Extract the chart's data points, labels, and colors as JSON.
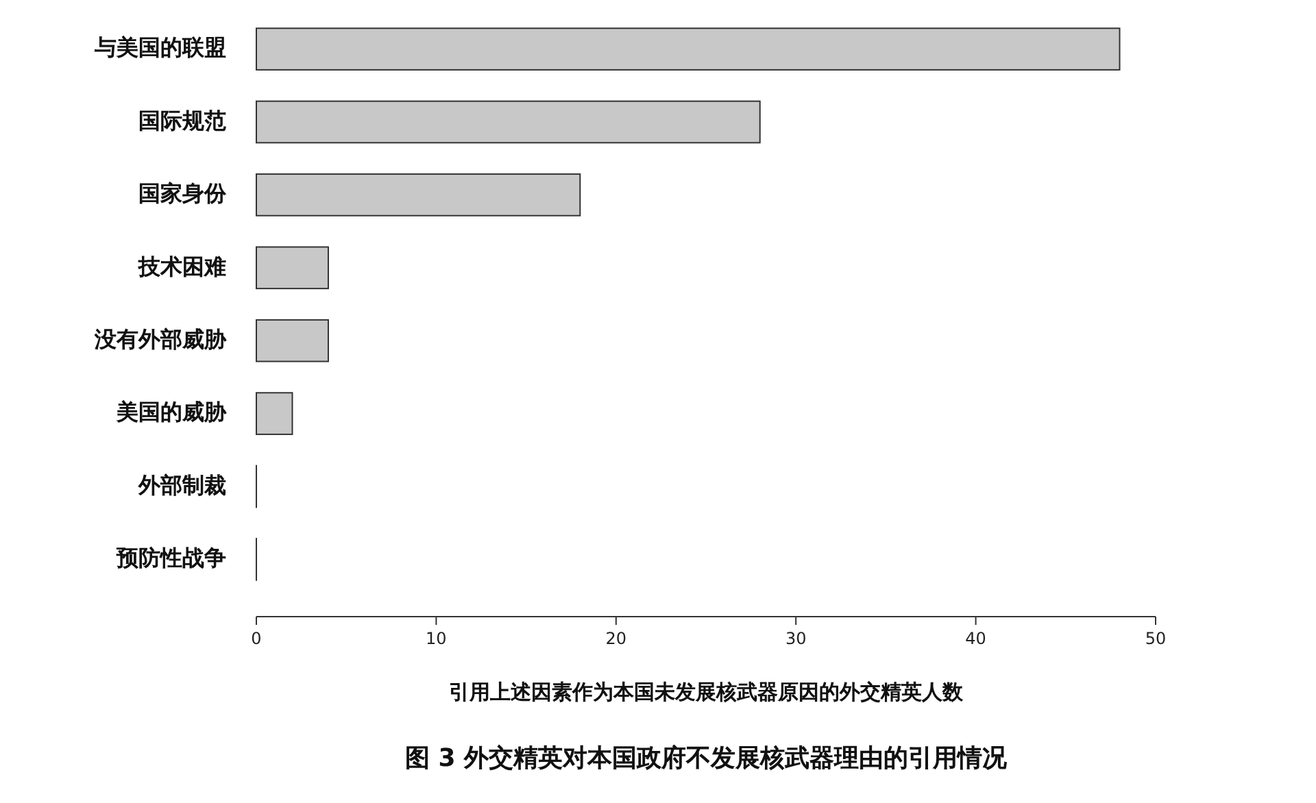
{
  "chart_data": {
    "type": "bar",
    "orientation": "horizontal",
    "title": "图 3  外交精英对本国政府不发展核武器理由的引用情况",
    "xlabel": "引用上述因素作为本国未发展核武器原因的外交精英人数",
    "categories": [
      "与美国的联盟",
      "国际规范",
      "国家身份",
      "技术困难",
      "没有外部威胁",
      "美国的威胁",
      "外部制裁",
      "预防性战争"
    ],
    "values": [
      48,
      28,
      18,
      4,
      4,
      2,
      0,
      0
    ],
    "color": "#c8c8c8",
    "xlim": [
      0,
      50
    ],
    "xticks": [
      0,
      10,
      20,
      30,
      40,
      50
    ],
    "grid": false
  }
}
